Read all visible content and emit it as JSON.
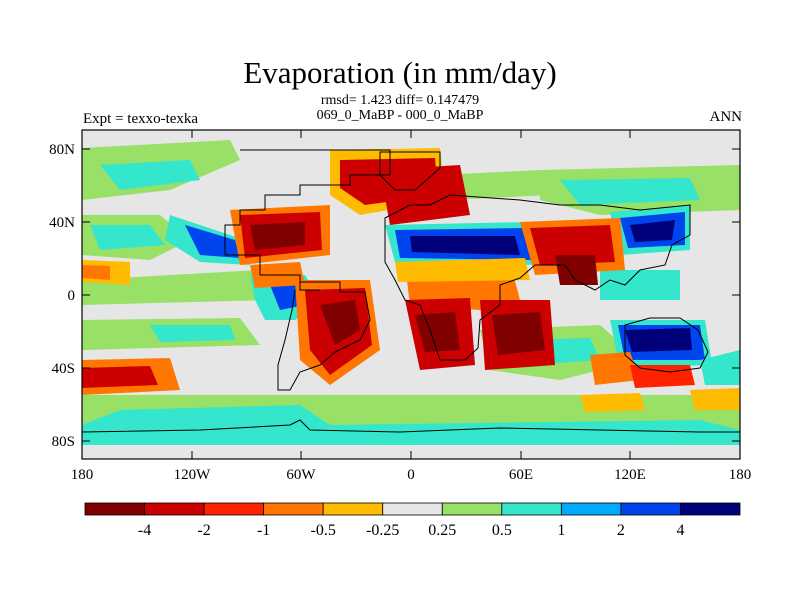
{
  "title": "Evaporation (in mm/day)",
  "stats_line": "rmsd= 1.423 diff= 0.147479",
  "period_line": "069_0_MaBP - 000_0_MaBP",
  "left_label": "Expt = texxo-texka",
  "right_label": "ANN",
  "y_ticks": [
    "80N",
    "40N",
    "0",
    "40S",
    "80S"
  ],
  "x_ticks": [
    "180",
    "120W",
    "60W",
    "0",
    "60E",
    "120E",
    "180"
  ],
  "colorbar": {
    "labels": [
      "-4",
      "-2",
      "-1",
      "-0.5",
      "-0.25",
      "0.25",
      "0.5",
      "1",
      "2",
      "4"
    ],
    "colors": [
      "#800000",
      "#cc0000",
      "#ff2200",
      "#ff7700",
      "#ffbb00",
      "#e6e6e6",
      "#99e066",
      "#33e6cc",
      "#00aaff",
      "#0044ee",
      "#00007a"
    ]
  }
}
